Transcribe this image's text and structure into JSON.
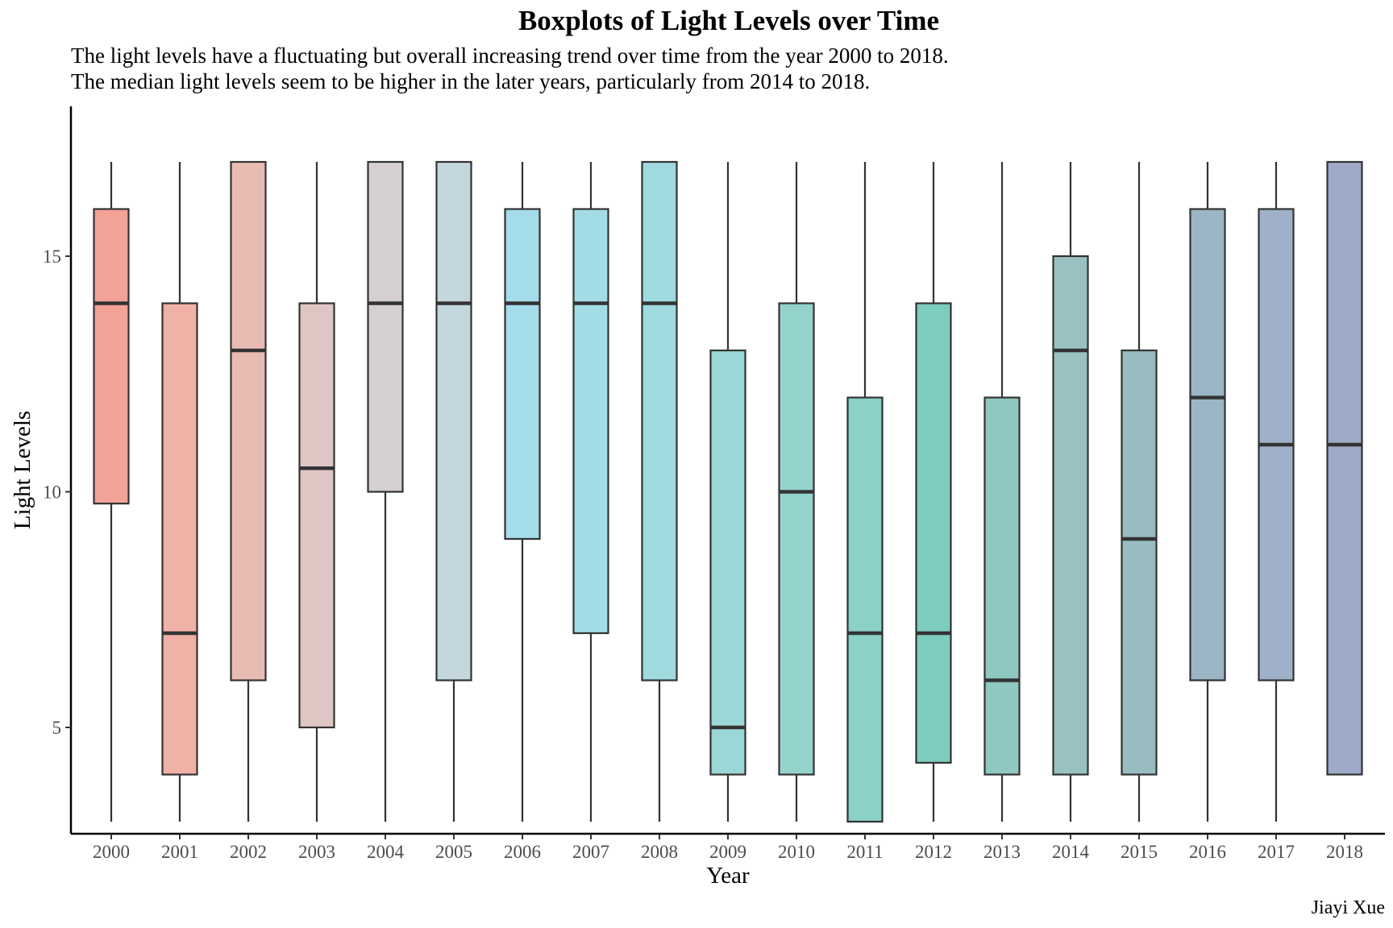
{
  "chart_data": {
    "type": "boxplot",
    "title": "Boxplots of Light Levels over Time",
    "subtitle": [
      "The light levels have a fluctuating but overall increasing trend over time from the year 2000 to 2018.",
      "The median light levels seem to be higher in the later years, particularly from 2014 to 2018."
    ],
    "caption": "Jiayi Xue",
    "xlabel": "Year",
    "ylabel": "Light Levels",
    "ylim": [
      2.3,
      17.7
    ],
    "yticks": [
      5,
      10,
      15
    ],
    "grid": false,
    "legend": "none",
    "categories": [
      "2000",
      "2001",
      "2002",
      "2003",
      "2004",
      "2005",
      "2006",
      "2007",
      "2008",
      "2009",
      "2010",
      "2011",
      "2012",
      "2013",
      "2014",
      "2015",
      "2016",
      "2017",
      "2018"
    ],
    "boxes": [
      {
        "year": "2000",
        "min": 3,
        "q1": 9.75,
        "median": 14,
        "q3": 16,
        "max": 17,
        "color": "#f2a297"
      },
      {
        "year": "2001",
        "min": 3,
        "q1": 4,
        "median": 7,
        "q3": 14,
        "max": 17,
        "color": "#f0b1a6"
      },
      {
        "year": "2002",
        "min": 3,
        "q1": 6,
        "median": 13,
        "q3": 17,
        "max": 17,
        "color": "#e9bcb3"
      },
      {
        "year": "2003",
        "min": 3,
        "q1": 5,
        "median": 10.5,
        "q3": 14,
        "max": 17,
        "color": "#dfc6c3"
      },
      {
        "year": "2004",
        "min": 3,
        "q1": 10,
        "median": 14,
        "q3": 17,
        "max": 17,
        "color": "#d5cfd1"
      },
      {
        "year": "2005",
        "min": 3,
        "q1": 6,
        "median": 14,
        "q3": 17,
        "max": 17,
        "color": "#c4d6de"
      },
      {
        "year": "2006",
        "min": 3,
        "q1": 9,
        "median": 14,
        "q3": 16,
        "max": 17,
        "color": "#a4dcea"
      },
      {
        "year": "2007",
        "min": 3,
        "q1": 7,
        "median": 14,
        "q3": 16,
        "max": 17,
        "color": "#a3dce7"
      },
      {
        "year": "2008",
        "min": 3,
        "q1": 6,
        "median": 14,
        "q3": 17,
        "max": 17,
        "color": "#9fdadf"
      },
      {
        "year": "2009",
        "min": 3,
        "q1": 4,
        "median": 5,
        "q3": 13,
        "max": 17,
        "color": "#9bd7d6"
      },
      {
        "year": "2010",
        "min": 3,
        "q1": 4,
        "median": 10,
        "q3": 14,
        "max": 17,
        "color": "#93d3cc"
      },
      {
        "year": "2011",
        "min": 3,
        "q1": 3,
        "median": 7,
        "q3": 12,
        "max": 17,
        "color": "#8ad1c7"
      },
      {
        "year": "2012",
        "min": 3,
        "q1": 4.25,
        "median": 7,
        "q3": 14,
        "max": 17,
        "color": "#7dcdbf"
      },
      {
        "year": "2013",
        "min": 3,
        "q1": 4,
        "median": 6,
        "q3": 12,
        "max": 17,
        "color": "#8ec8c0"
      },
      {
        "year": "2014",
        "min": 3,
        "q1": 4,
        "median": 13,
        "q3": 15,
        "max": 17,
        "color": "#99c1c1"
      },
      {
        "year": "2015",
        "min": 3,
        "q1": 4,
        "median": 9,
        "q3": 13,
        "max": 17,
        "color": "#99bbc2"
      },
      {
        "year": "2016",
        "min": 3,
        "q1": 6,
        "median": 12,
        "q3": 16,
        "max": 17,
        "color": "#9cb6c5"
      },
      {
        "year": "2017",
        "min": 3,
        "q1": 6,
        "median": 11,
        "q3": 16,
        "max": 17,
        "color": "#9eb1c8"
      },
      {
        "year": "2018",
        "min": 4,
        "q1": 4,
        "median": 11,
        "q3": 17,
        "max": 17,
        "color": "#9eaac8"
      }
    ]
  }
}
